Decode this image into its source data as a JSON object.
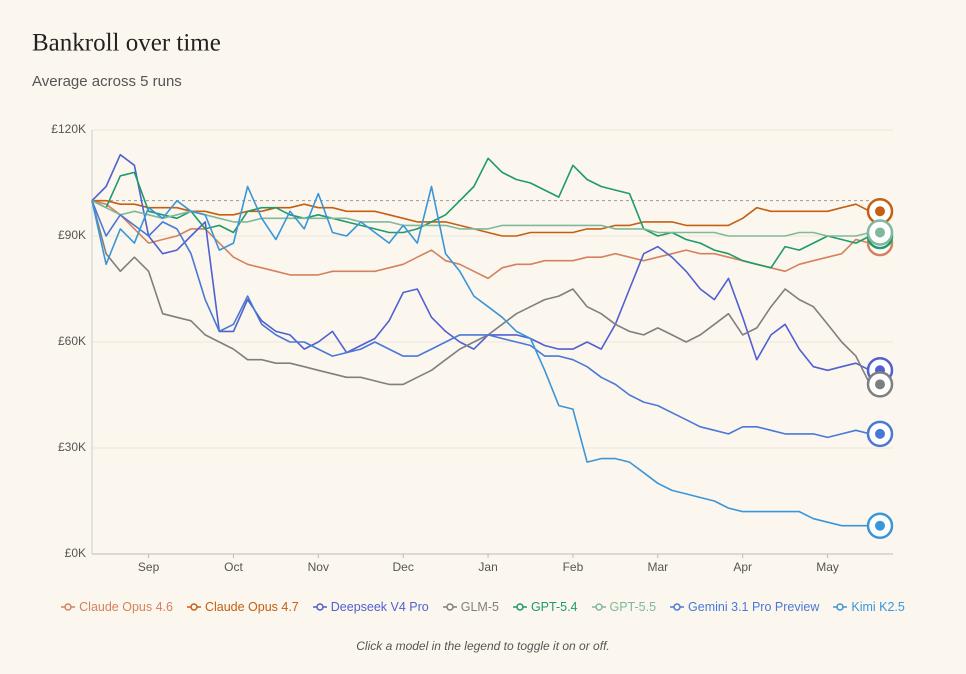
{
  "chart_data": {
    "type": "line",
    "title": "Bankroll over time",
    "subtitle": "Average across 5 runs",
    "note": "Click a model in the legend to toggle it on or off.",
    "categories": [
      null,
      null,
      null,
      null,
      "Sep",
      null,
      null,
      null,
      null,
      null,
      "Oct",
      null,
      null,
      null,
      null,
      null,
      "Nov",
      null,
      null,
      null,
      null,
      null,
      "Dec",
      null,
      null,
      null,
      null,
      null,
      "Jan",
      null,
      null,
      null,
      null,
      null,
      "Feb",
      null,
      null,
      null,
      null,
      null,
      "Mar",
      null,
      null,
      null,
      null,
      null,
      "Apr",
      null,
      null,
      null,
      null,
      null,
      "May",
      null,
      null,
      null
    ],
    "ylim": [
      0,
      120000
    ],
    "yticks": [
      {
        "value": 0,
        "label": "£0K"
      },
      {
        "value": 30000,
        "label": "£30K"
      },
      {
        "value": 60000,
        "label": "£60K"
      },
      {
        "value": 90000,
        "label": "£90K"
      },
      {
        "value": 120000,
        "label": "£120K"
      }
    ],
    "grid": true,
    "reference_line": 100000,
    "series": [
      {
        "name": "Claude Opus 4.6",
        "color": "#d4825e",
        "values": [
          100000,
          99000,
          96000,
          92000,
          88000,
          89000,
          90000,
          92000,
          92000,
          88000,
          84000,
          82000,
          81000,
          80000,
          79000,
          79000,
          79000,
          80000,
          80000,
          80000,
          80000,
          81000,
          82000,
          84000,
          86000,
          83000,
          82000,
          80000,
          78000,
          81000,
          82000,
          82000,
          83000,
          83000,
          83000,
          84000,
          84000,
          85000,
          84000,
          83000,
          84000,
          85000,
          86000,
          85000,
          85000,
          84000,
          83000,
          82000,
          81000,
          80000,
          82000,
          83000,
          84000,
          85000,
          89000,
          88000
        ]
      },
      {
        "name": "Claude Opus 4.7",
        "color": "#c45f13",
        "values": [
          100000,
          100000,
          99000,
          99000,
          98000,
          98000,
          98000,
          97000,
          97000,
          96000,
          96000,
          97000,
          97000,
          98000,
          98000,
          99000,
          98000,
          98000,
          97000,
          97000,
          97000,
          96000,
          95000,
          94000,
          94000,
          94000,
          93000,
          92000,
          91000,
          90000,
          90000,
          91000,
          91000,
          91000,
          91000,
          92000,
          92000,
          93000,
          93000,
          94000,
          94000,
          94000,
          93000,
          93000,
          93000,
          93000,
          95000,
          98000,
          97000,
          97000,
          97000,
          97000,
          97000,
          98000,
          99000,
          97000
        ]
      },
      {
        "name": "Deepseek V4 Pro",
        "color": "#5060d0",
        "values": [
          100000,
          104000,
          113000,
          110000,
          90000,
          85000,
          86000,
          90000,
          94000,
          63000,
          63000,
          72000,
          66000,
          63000,
          62000,
          58000,
          60000,
          63000,
          57000,
          59000,
          61000,
          66000,
          74000,
          75000,
          67000,
          63000,
          60000,
          58000,
          62000,
          62000,
          62000,
          61000,
          59000,
          58000,
          58000,
          60000,
          58000,
          65000,
          75000,
          85000,
          87000,
          84000,
          80000,
          75000,
          72000,
          78000,
          67000,
          55000,
          62000,
          65000,
          58000,
          53000,
          52000,
          53000,
          54000,
          52000
        ]
      },
      {
        "name": "GLM-5",
        "color": "#7f7f7f",
        "values": [
          100000,
          85000,
          80000,
          84000,
          80000,
          68000,
          67000,
          66000,
          62000,
          60000,
          58000,
          55000,
          55000,
          54000,
          54000,
          53000,
          52000,
          51000,
          50000,
          50000,
          49000,
          48000,
          48000,
          50000,
          52000,
          55000,
          58000,
          60000,
          62000,
          65000,
          68000,
          70000,
          72000,
          73000,
          75000,
          70000,
          68000,
          65000,
          63000,
          62000,
          64000,
          62000,
          60000,
          62000,
          65000,
          68000,
          62000,
          64000,
          70000,
          75000,
          72000,
          70000,
          65000,
          60000,
          56000,
          48000
        ]
      },
      {
        "name": "GPT-5.4",
        "color": "#1f9a6a",
        "values": [
          100000,
          98000,
          107000,
          108000,
          97000,
          96000,
          95000,
          97000,
          92000,
          93000,
          91000,
          97000,
          98000,
          98000,
          96000,
          95000,
          96000,
          95000,
          94000,
          93000,
          92000,
          91000,
          91000,
          92000,
          94000,
          96000,
          100000,
          104000,
          112000,
          108000,
          106000,
          105000,
          103000,
          101000,
          110000,
          106000,
          104000,
          103000,
          102000,
          92000,
          90000,
          91000,
          89000,
          88000,
          86000,
          85000,
          83000,
          82000,
          81000,
          87000,
          86000,
          88000,
          90000,
          89000,
          88000,
          90000
        ]
      },
      {
        "name": "GPT-5.5",
        "color": "#7fb89a",
        "values": [
          100000,
          98000,
          96000,
          97000,
          96000,
          95000,
          96000,
          97000,
          96000,
          95000,
          94000,
          94000,
          95000,
          95000,
          95000,
          95000,
          95000,
          95000,
          95000,
          94000,
          94000,
          94000,
          93000,
          93000,
          93000,
          93000,
          92000,
          92000,
          92000,
          93000,
          93000,
          93000,
          93000,
          93000,
          93000,
          93000,
          93000,
          92000,
          92000,
          92000,
          91000,
          91000,
          91000,
          91000,
          91000,
          90000,
          90000,
          90000,
          90000,
          90000,
          91000,
          91000,
          90000,
          90000,
          90000,
          91000
        ]
      },
      {
        "name": "Gemini 3.1 Pro Preview",
        "color": "#4a78d6",
        "values": [
          100000,
          90000,
          96000,
          93000,
          90000,
          94000,
          92000,
          85000,
          72000,
          63000,
          65000,
          73000,
          65000,
          62000,
          60000,
          60000,
          58000,
          56000,
          57000,
          58000,
          60000,
          58000,
          56000,
          56000,
          58000,
          60000,
          62000,
          62000,
          62000,
          61000,
          60000,
          59000,
          56000,
          56000,
          55000,
          53000,
          50000,
          48000,
          45000,
          43000,
          42000,
          40000,
          38000,
          36000,
          35000,
          34000,
          36000,
          36000,
          35000,
          34000,
          34000,
          34000,
          33000,
          34000,
          35000,
          34000
        ]
      },
      {
        "name": "Kimi K2.5",
        "color": "#3a96d8",
        "values": [
          100000,
          82000,
          92000,
          88000,
          98000,
          95000,
          100000,
          97000,
          96000,
          86000,
          88000,
          104000,
          95000,
          89000,
          97000,
          92000,
          102000,
          91000,
          90000,
          94000,
          91000,
          88000,
          93000,
          88000,
          104000,
          85000,
          80000,
          73000,
          70000,
          67000,
          63000,
          61000,
          52000,
          42000,
          41000,
          26000,
          27000,
          27000,
          26000,
          23000,
          20000,
          18000,
          17000,
          16000,
          15000,
          13000,
          12000,
          12000,
          12000,
          12000,
          12000,
          10000,
          9000,
          8000,
          8000,
          8000
        ]
      }
    ]
  }
}
